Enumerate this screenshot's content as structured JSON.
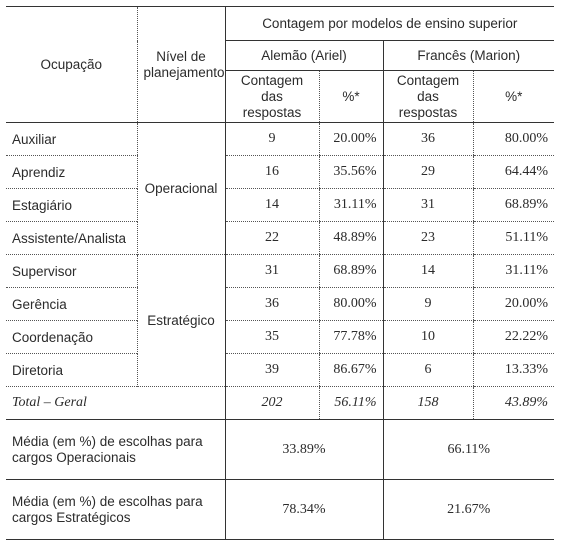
{
  "headers": {
    "ocupacao": "Ocupação",
    "nivel_line1": "Nível de",
    "nivel_line2": "planejamento",
    "contagem": "Contagem por modelos de ensino superior",
    "alemao": "Alemão (Ariel)",
    "frances": "Francês (Marion)",
    "sub_contagem_line1": "Contagem",
    "sub_contagem_line2": "das respostas",
    "sub_pct": "%*"
  },
  "rows": [
    {
      "ocupacao": "Auxiliar",
      "nivel": "Operacional",
      "alemao_count": "9",
      "alemao_pct": "20.00%",
      "frances_count": "36",
      "frances_pct": "80.00%"
    },
    {
      "ocupacao": "Aprendiz",
      "alemao_count": "16",
      "alemao_pct": "35.56%",
      "frances_count": "29",
      "frances_pct": "64.44%"
    },
    {
      "ocupacao": "Estagiário",
      "alemao_count": "14",
      "alemao_pct": "31.11%",
      "frances_count": "31",
      "frances_pct": "68.89%"
    },
    {
      "ocupacao": "Assistente/Analista",
      "alemao_count": "22",
      "alemao_pct": "48.89%",
      "frances_count": "23",
      "frances_pct": "51.11%"
    },
    {
      "ocupacao": "Supervisor",
      "nivel": "Estratégico",
      "alemao_count": "31",
      "alemao_pct": "68.89%",
      "frances_count": "14",
      "frances_pct": "31.11%"
    },
    {
      "ocupacao": "Gerência",
      "alemao_count": "36",
      "alemao_pct": "80.00%",
      "frances_count": "9",
      "frances_pct": "20.00%"
    },
    {
      "ocupacao": "Coordenação",
      "alemao_count": "35",
      "alemao_pct": "77.78%",
      "frances_count": "10",
      "frances_pct": "22.22%"
    },
    {
      "ocupacao": "Diretoria",
      "alemao_count": "39",
      "alemao_pct": "86.67%",
      "frances_count": "6",
      "frances_pct": "13.33%"
    }
  ],
  "total": {
    "label": "Total – Geral",
    "alemao_count": "202",
    "alemao_pct": "56.11%",
    "frances_count": "158",
    "frances_pct": "43.89%"
  },
  "media_operacional": {
    "label_line1": "Média (em %) de escolhas para",
    "label_line2": "cargos Operacionais",
    "alemao": "33.89%",
    "frances": "66.11%"
  },
  "media_estrategico": {
    "label_line1": "Média (em %) de escolhas para",
    "label_line2": "cargos Estratégicos",
    "alemao": "78.34%",
    "frances": "21.67%"
  }
}
